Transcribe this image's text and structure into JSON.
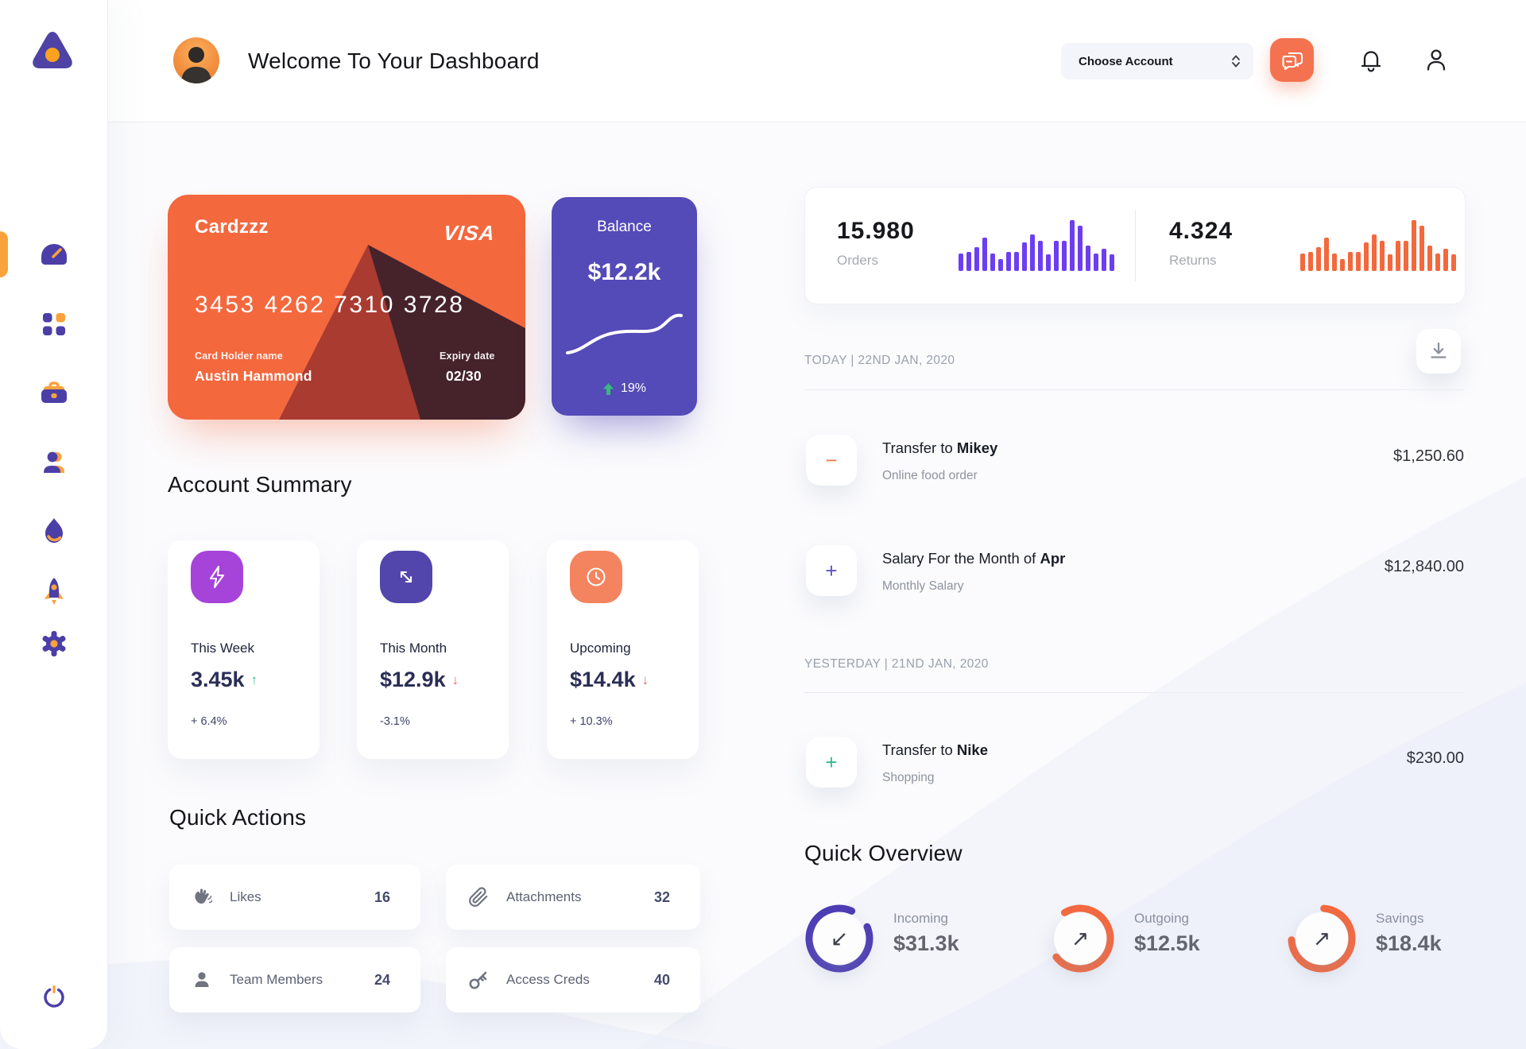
{
  "brand": {
    "purple": "#4b3fa7",
    "orange": "#f9a23c"
  },
  "header": {
    "title": "Welcome To Your Dashboard",
    "account_select_label": "Choose Account",
    "chat_button_bg": "#f4724f"
  },
  "credit_card": {
    "bg": "#f4683e",
    "name": "Cardzzz",
    "brand": "VISA",
    "number": "3453 4262 7310 3728",
    "holder_label": "Card Holder name",
    "holder": "Austin Hammond",
    "expiry_label": "Expiry date",
    "expiry": "02/30"
  },
  "balance_card": {
    "bg": "#544ab8",
    "label": "Balance",
    "value": "$12.2k",
    "change": "19%",
    "trend_color": "#37b87e"
  },
  "stats": {
    "orders": {
      "value": "15.980",
      "label": "Orders"
    },
    "returns": {
      "value": "4.324",
      "label": "Returns"
    },
    "orders_chart": {
      "color": "#6c3ef2",
      "values": [
        34,
        38,
        47,
        66,
        34,
        23,
        38,
        38,
        56,
        72,
        59,
        33,
        59,
        59,
        100,
        89,
        50,
        34,
        44,
        33
      ]
    },
    "returns_chart": {
      "color": "#f3683c",
      "values": [
        34,
        38,
        47,
        66,
        34,
        23,
        38,
        38,
        56,
        72,
        59,
        33,
        59,
        59,
        100,
        89,
        50,
        34,
        44,
        33
      ]
    }
  },
  "transactions": {
    "groups": [
      {
        "date": "TODAY | 22ND JAN, 2020"
      },
      {
        "date": "YESTERDAY | 21ND JAN, 2020"
      }
    ],
    "items": [
      {
        "prefix": "Transfer to ",
        "bold": "Mikey",
        "subtitle": "Online food order",
        "amount": "$1,250.60",
        "sign": "−",
        "sign_color": "#f4794f"
      },
      {
        "prefix": "Salary For the Month of ",
        "bold": "Apr",
        "subtitle": "Monthly Salary",
        "amount": "$12,840.00",
        "sign": "+",
        "sign_color": "#5b51c8"
      },
      {
        "prefix": "Transfer to ",
        "bold": "Nike",
        "subtitle": "Shopping",
        "amount": "$230.00",
        "sign": "+",
        "sign_color": "#2fbd8f"
      }
    ]
  },
  "account_summary": {
    "heading": "Account Summary",
    "cards": [
      {
        "label": "This Week",
        "value": "3.45k",
        "trend": "↑",
        "trend_color": "#2fbd8f",
        "change": "+ 6.4%",
        "icon": "lightning",
        "icon_bg": "#a643d9"
      },
      {
        "label": "This Month",
        "value": "$12.9k",
        "trend": "↓",
        "trend_color": "#e46a6a",
        "change": "-3.1%",
        "icon": "diagonal-arrows",
        "icon_bg": "#5246ac"
      },
      {
        "label": "Upcoming",
        "value": "$14.4k",
        "trend": "↓",
        "trend_color": "#e46a6a",
        "change": "+ 10.3%",
        "icon": "clock",
        "icon_bg": "#f4845f"
      }
    ]
  },
  "quick_actions": {
    "heading": "Quick Actions",
    "items": [
      {
        "label": "Likes",
        "count": "16",
        "icon": "clap-hand"
      },
      {
        "label": "Attachments",
        "count": "32",
        "icon": "paperclip"
      },
      {
        "label": "Team Members",
        "count": "24",
        "icon": "person"
      },
      {
        "label": "Access Creds",
        "count": "40",
        "icon": "key"
      }
    ]
  },
  "quick_overview": {
    "heading": "Quick Overview",
    "items": [
      {
        "label": "Incoming",
        "value": "$31.3k",
        "arrow": "↙",
        "arc": {
          "color": "#4c3cb5",
          "pct": 88,
          "rotate": -23
        }
      },
      {
        "label": "Outgoing",
        "value": "$12.5k",
        "arrow": "↗",
        "arc": {
          "color": "#f4693f",
          "pct": 73,
          "rotate": 239
        }
      },
      {
        "label": "Savings",
        "value": "$18.4k",
        "arrow": "↗",
        "arc": {
          "color": "#f4693f",
          "pct": 73,
          "rotate": 274
        }
      }
    ]
  }
}
